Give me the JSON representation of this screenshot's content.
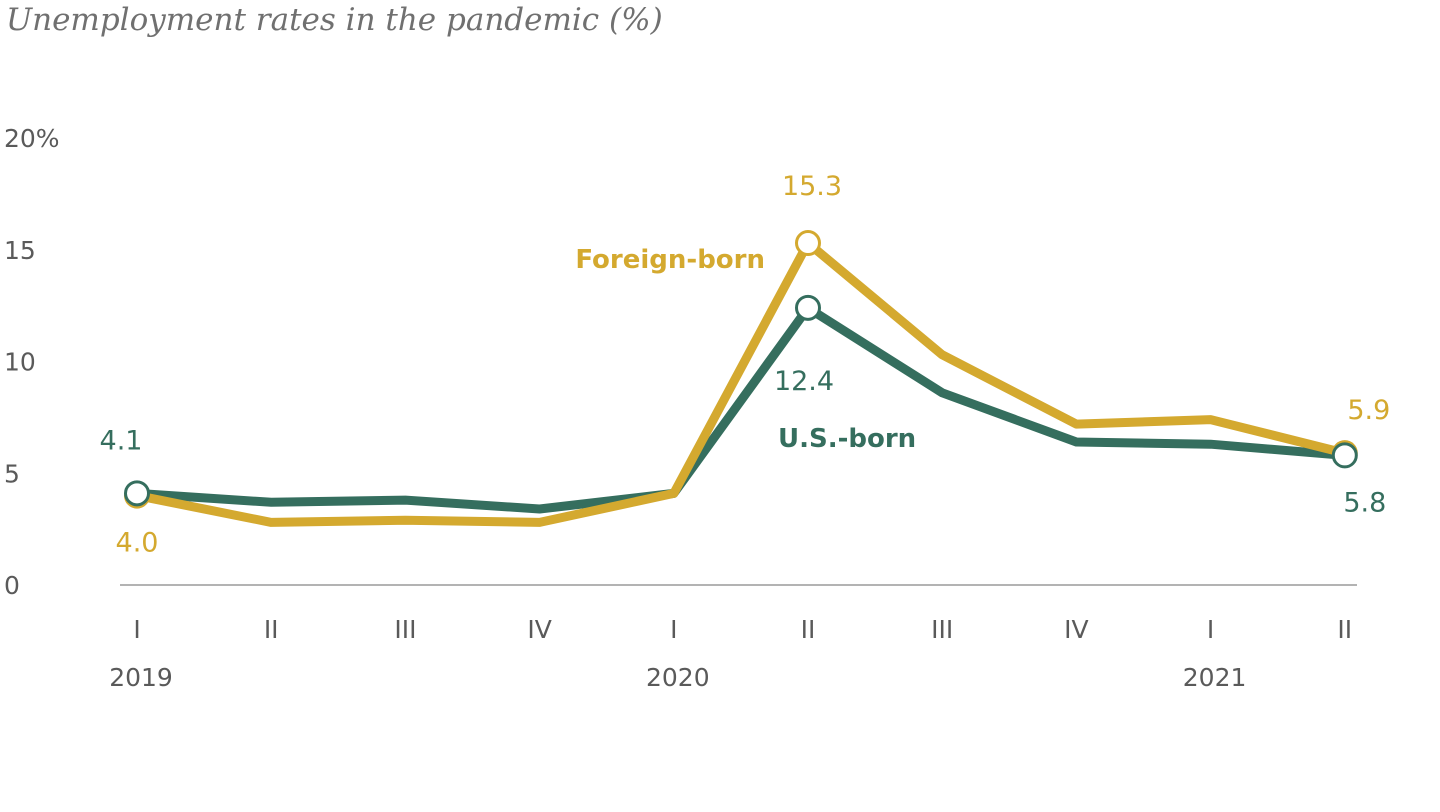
{
  "chart_data": {
    "type": "line",
    "title": "Unemployment rates in the pandemic (%)",
    "categories": [
      "I",
      "II",
      "III",
      "IV",
      "I",
      "II",
      "III",
      "IV",
      "I",
      "II"
    ],
    "years": [
      {
        "label": "2019",
        "index": 0
      },
      {
        "label": "2020",
        "index": 4
      },
      {
        "label": "2021",
        "index": 8
      }
    ],
    "ylim": [
      0,
      20
    ],
    "yticks": [
      {
        "value": 0,
        "label": "0"
      },
      {
        "value": 5,
        "label": "5"
      },
      {
        "value": 10,
        "label": "10"
      },
      {
        "value": 15,
        "label": "15"
      },
      {
        "value": 20,
        "label": "20%"
      }
    ],
    "series": [
      {
        "name": "Foreign-born",
        "color": "#d4a92f",
        "values": [
          4.0,
          2.8,
          2.9,
          2.8,
          4.1,
          15.3,
          10.3,
          7.2,
          7.4,
          5.9
        ]
      },
      {
        "name": "U.S.-born",
        "color": "#356e5e",
        "values": [
          4.1,
          3.7,
          3.8,
          3.4,
          4.1,
          12.4,
          8.6,
          6.4,
          6.3,
          5.8
        ]
      }
    ],
    "annotations": [
      {
        "series": 0,
        "index": 0,
        "text": "4.0"
      },
      {
        "series": 1,
        "index": 0,
        "text": "4.1"
      },
      {
        "series": 0,
        "index": 5,
        "text": "15.3"
      },
      {
        "series": 1,
        "index": 5,
        "text": "12.4"
      },
      {
        "series": 0,
        "index": 9,
        "text": "5.9"
      },
      {
        "series": 1,
        "index": 9,
        "text": "5.8"
      }
    ],
    "grid": false,
    "legend": "inline labels"
  }
}
